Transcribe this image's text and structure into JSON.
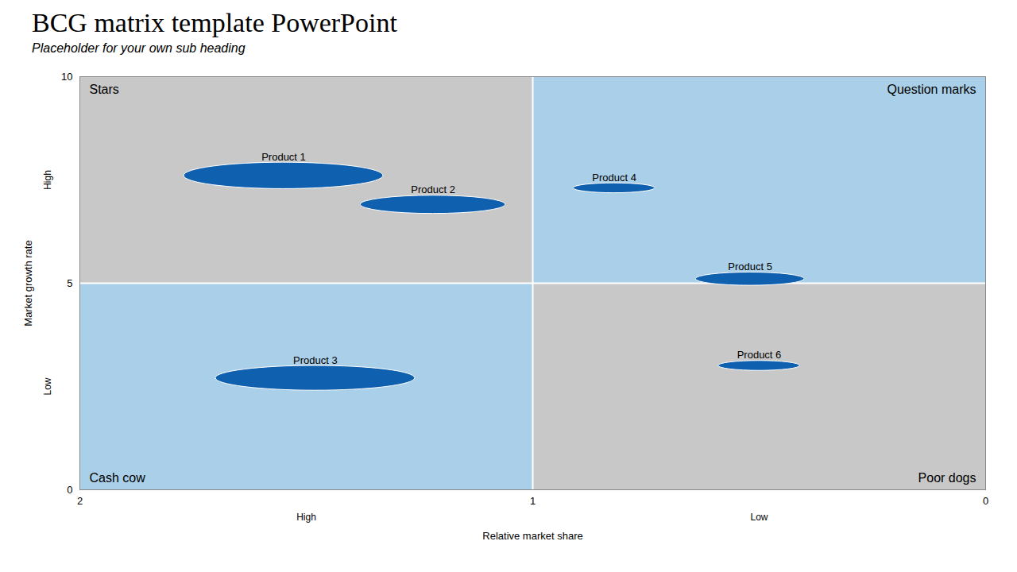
{
  "chart_data": {
    "type": "bubble",
    "title": "BCG matrix template PowerPoint",
    "subtitle": "Placeholder for your own sub heading",
    "xlabel": "Relative market share",
    "ylabel": "Market growth rate",
    "xlim": [
      2.0,
      0.0
    ],
    "ylim": [
      0.0,
      10.0
    ],
    "xticks": [
      2,
      1,
      0
    ],
    "yticks": [
      0,
      5,
      10
    ],
    "grid": false,
    "labels": [
      "Product 1",
      "Product 2",
      "Product 3",
      "Product 4",
      "Product 5",
      "Product 6"
    ],
    "x": [
      1.55,
      1.22,
      1.48,
      0.82,
      0.52,
      0.5
    ],
    "y": [
      7.6,
      6.9,
      2.7,
      7.3,
      5.1,
      3.0
    ],
    "rx": [
      0.22,
      0.16,
      0.22,
      0.09,
      0.12,
      0.09
    ],
    "ry": [
      0.32,
      0.22,
      0.3,
      0.12,
      0.16,
      0.12
    ],
    "color": "#1060b0",
    "dividers": {
      "x": 1.0,
      "y": 5.0
    },
    "quadrants": [
      {
        "name": "Stars",
        "color": "#c8c8c8"
      },
      {
        "name": "Question marks",
        "color": "#aacfe8"
      },
      {
        "name": "Cash cow",
        "color": "#aacfe8"
      },
      {
        "name": "Poor dogs",
        "color": "#c8c8c8"
      }
    ],
    "x_sublabels": [
      "High",
      "Low"
    ],
    "y_sublabels": [
      "High",
      "Low"
    ]
  }
}
